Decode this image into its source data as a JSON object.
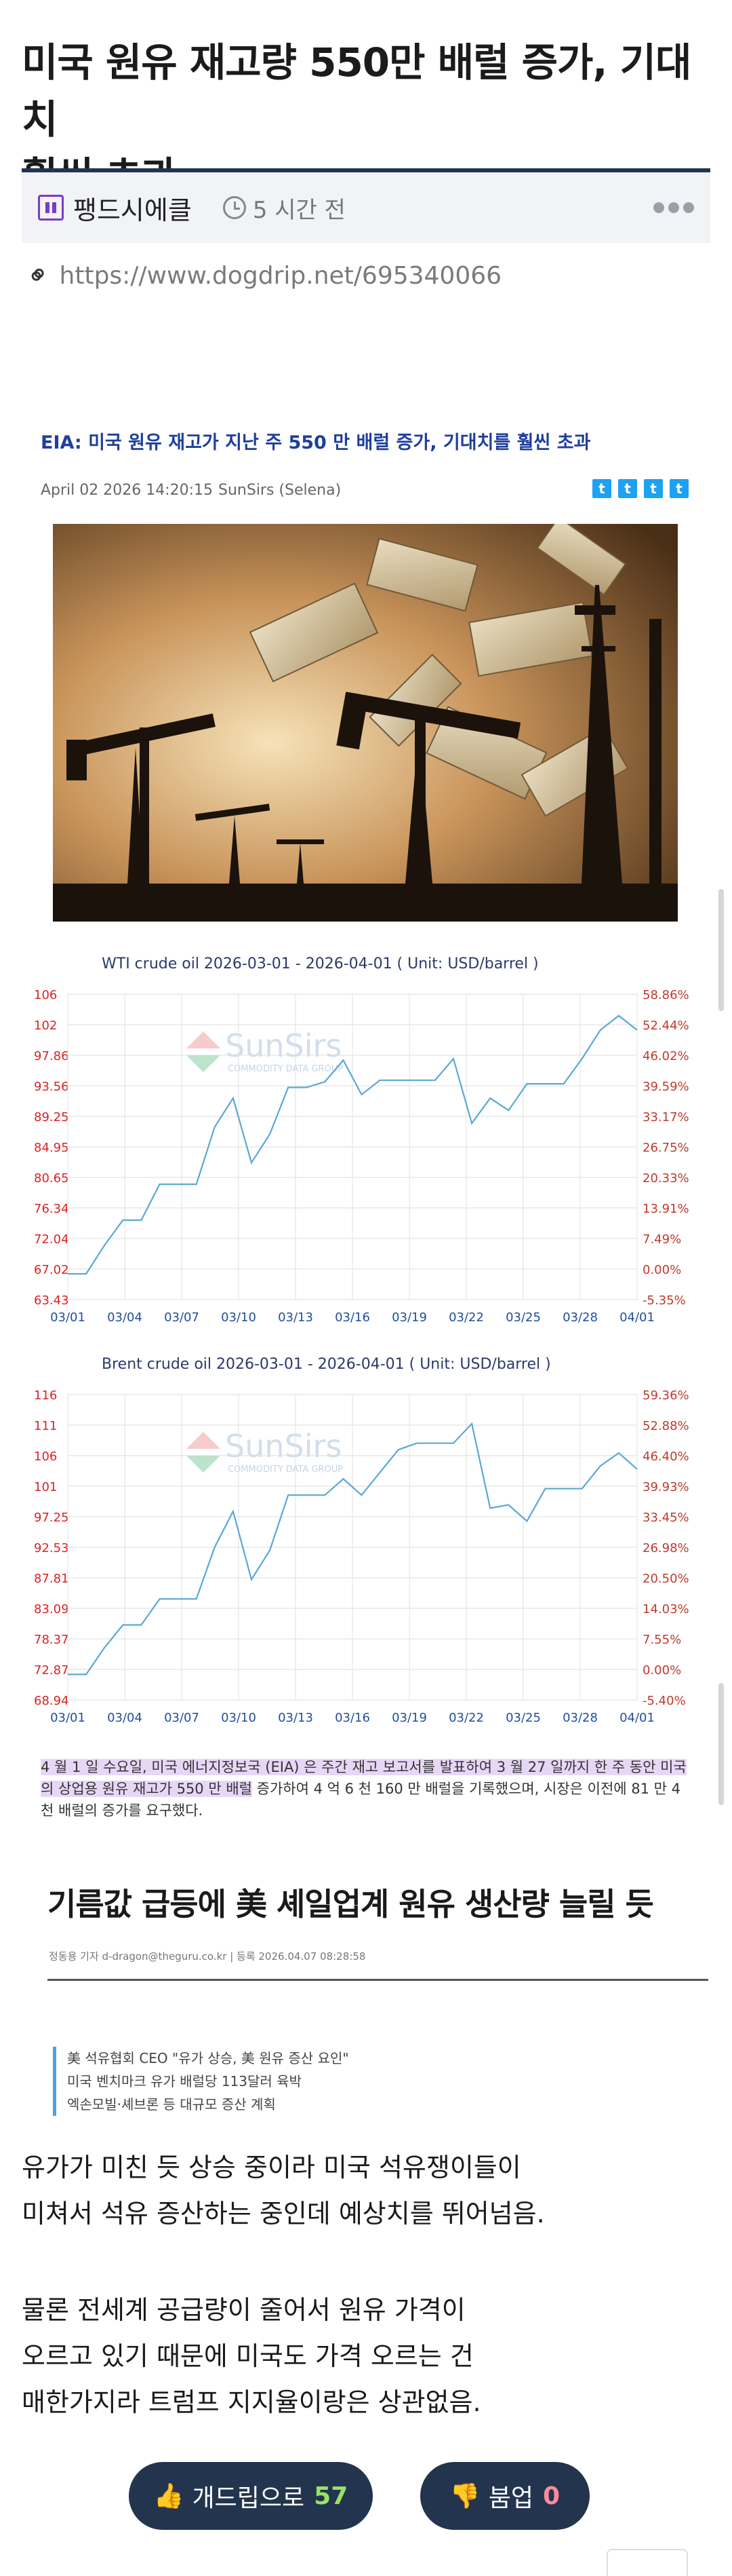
{
  "post": {
    "title_line1": "미국 원유 재고량 550만 배럴 증가, 기대치",
    "title_line2": "훨씬 초과",
    "board": "팽드시에클",
    "time": "5 시간 전",
    "url": "https://www.dogdrip.net/695340066"
  },
  "article": {
    "title": "EIA: 미국 원유 재고가 지난 주 550 만 배럴 증가, 기대치를 훨씬 초과",
    "date": "April 02 2026 14:20:15",
    "author": "SunSirs (Selena)",
    "share_icons": [
      "twitter-icon",
      "twitter-icon",
      "twitter-icon",
      "twitter-icon"
    ],
    "highlight_text": "4 월 1 일 수요일, 미국 에너지정보국 (EIA) 은 주간 재고 보고서를 발표하여 3 월 27 일까지 한 주 동안 미국의 상업용 원유 재고가 550 만 배럴",
    "rest_text": " 증가하여 4 억 6 천 160 만 배럴을 기록했으며, 시장은 이전에 81 만 4 천 배럴의 증가를 요구했다."
  },
  "chart_data": [
    {
      "type": "line",
      "title": "WTI crude oil 2026-03-01 - 2026-04-01     ( Unit: USD/barrel )",
      "watermark": "SunSirs",
      "watermark_sub": "COMMODITY DATA GROUP",
      "x_ticks": [
        "03/01",
        "03/04",
        "03/07",
        "03/10",
        "03/13",
        "03/16",
        "03/19",
        "03/22",
        "03/25",
        "03/28",
        "04/01"
      ],
      "y_left_ticks": [
        "106",
        "102",
        "97.86",
        "93.56",
        "89.25",
        "84.95",
        "80.65",
        "76.34",
        "72.04",
        "67.02",
        "63.43"
      ],
      "y_right_ticks": [
        "58.86%",
        "52.44%",
        "46.02%",
        "39.59%",
        "33.17%",
        "26.75%",
        "20.33%",
        "13.91%",
        "7.49%",
        "0.00%",
        "-5.35%"
      ],
      "ylim": [
        63.43,
        106
      ],
      "xlim": [
        0,
        31
      ],
      "x": [
        0,
        1,
        2,
        3,
        4,
        5,
        6,
        7,
        8,
        9,
        10,
        11,
        12,
        13,
        14,
        15,
        16,
        17,
        18,
        19,
        20,
        21,
        22,
        23,
        24,
        25,
        26,
        27,
        28,
        29,
        30,
        31
      ],
      "values": [
        67.02,
        67.02,
        71.0,
        74.5,
        74.5,
        79.5,
        79.5,
        79.5,
        87.5,
        91.5,
        82.5,
        86.5,
        93.0,
        93.0,
        93.8,
        96.8,
        92.0,
        94.0,
        94.0,
        94.0,
        94.0,
        97.0,
        88.0,
        91.5,
        89.8,
        93.5,
        93.5,
        93.5,
        97.0,
        101.0,
        103.0,
        101.0
      ]
    },
    {
      "type": "line",
      "title": "Brent crude oil 2026-03-01 - 2026-04-01     ( Unit: USD/barrel )",
      "watermark": "SunSirs",
      "watermark_sub": "COMMODITY DATA GROUP",
      "x_ticks": [
        "03/01",
        "03/04",
        "03/07",
        "03/10",
        "03/13",
        "03/16",
        "03/19",
        "03/22",
        "03/25",
        "03/28",
        "04/01"
      ],
      "y_left_ticks": [
        "116",
        "111",
        "106",
        "101",
        "97.25",
        "92.53",
        "87.81",
        "83.09",
        "78.37",
        "72.87",
        "68.94"
      ],
      "y_right_ticks": [
        "59.36%",
        "52.88%",
        "46.40%",
        "39.93%",
        "33.45%",
        "26.98%",
        "20.50%",
        "14.03%",
        "7.55%",
        "0.00%",
        "-5.40%"
      ],
      "ylim": [
        68.94,
        116
      ],
      "xlim": [
        0,
        31
      ],
      "x": [
        0,
        1,
        2,
        3,
        4,
        5,
        6,
        7,
        8,
        9,
        10,
        11,
        12,
        13,
        14,
        15,
        16,
        17,
        18,
        19,
        20,
        21,
        22,
        23,
        24,
        25,
        26,
        27,
        28,
        29,
        30,
        31
      ],
      "values": [
        72.87,
        72.87,
        77.0,
        80.5,
        80.5,
        84.5,
        84.5,
        84.5,
        92.5,
        98.0,
        87.5,
        92.0,
        100.5,
        100.5,
        100.5,
        103.0,
        100.5,
        104.0,
        107.5,
        108.5,
        108.5,
        108.5,
        111.5,
        98.5,
        99.0,
        96.5,
        101.5,
        101.5,
        101.5,
        105.0,
        107.0,
        104.5
      ]
    }
  ],
  "news": {
    "title": "기름값 급등에 美 셰일업계 원유 생산량 늘릴 듯",
    "meta": "정동용 기자 d-dragon@theguru.co.kr  |  등록 2026.04.07 08:28:58",
    "quote_lines": [
      "美 석유협회 CEO \"유가 상승, 美 원유 증산 요인\"",
      "미국 벤치마크 유가 배럴당 113달러 육박",
      "엑손모빌·셰브론 등 대규모 증산 계획"
    ]
  },
  "body": {
    "p1_line1": "유가가 미친 듯 상승 중이라 미국 석유쟁이들이",
    "p1_line2": "미쳐서 석유 증산하는 중인데 예상치를 뛰어넘음.",
    "p2_line1": "물론 전세계 공급량이 줄어서 원유 가격이",
    "p2_line2": "오르고 있기 때문에 미국도 가격 오르는 건",
    "p2_line3": "매한가지라 트럼프 지지율이랑은 상관없음."
  },
  "votes": {
    "up_label": "개드립으로",
    "up_count": "57",
    "down_label": "붐업",
    "down_count": "0"
  },
  "colors": {
    "accent": "#23344f",
    "up_count": "#9be264",
    "down_count": "#ff8a9a",
    "chart_line": "#5aa8d6",
    "chart_left_axis": "#d22",
    "chart_right_axis": "#c0392b",
    "chart_x_axis": "#1f4f9c",
    "highlight": "#e7d7f7"
  }
}
